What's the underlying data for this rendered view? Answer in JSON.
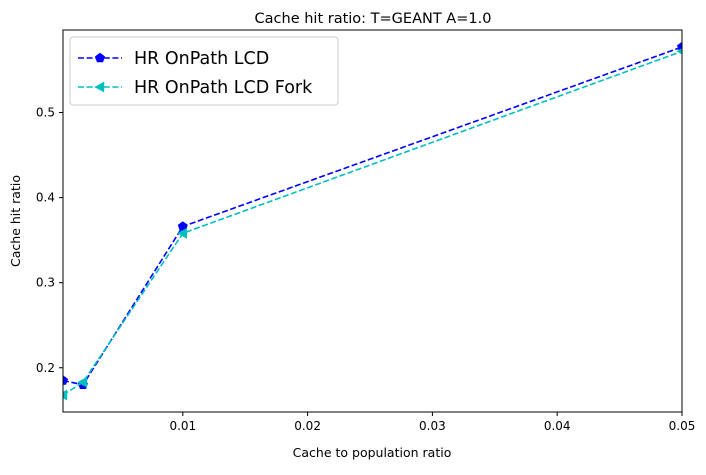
{
  "chart_data": {
    "type": "line",
    "title": "Cache hit ratio: T=GEANT A=1.0",
    "xlabel": "Cache to population ratio",
    "ylabel": "Cache hit ratio",
    "xlim": [
      0.0004,
      0.05
    ],
    "ylim": [
      0.148,
      0.597
    ],
    "x_ticks": [
      0.01,
      0.02,
      0.03,
      0.04,
      0.05
    ],
    "x_tick_labels": [
      "0.01",
      "0.02",
      "0.03",
      "0.04",
      "0.05"
    ],
    "y_ticks": [
      0.2,
      0.3,
      0.4,
      0.5
    ],
    "y_tick_labels": [
      "0.2",
      "0.3",
      "0.4",
      "0.5"
    ],
    "grid": false,
    "legend_position": "top-left",
    "x": [
      0.0004,
      0.002,
      0.01,
      0.05
    ],
    "series": [
      {
        "name": "HR OnPath LCD",
        "values": [
          0.185,
          0.18,
          0.366,
          0.577
        ],
        "color": "#0000ff",
        "marker": "pentagon",
        "linestyle": "dashed"
      },
      {
        "name": "HR OnPath LCD Fork",
        "values": [
          0.168,
          0.183,
          0.358,
          0.572
        ],
        "color": "#00bfbf",
        "marker": "triangle-left",
        "linestyle": "dashed"
      }
    ]
  }
}
